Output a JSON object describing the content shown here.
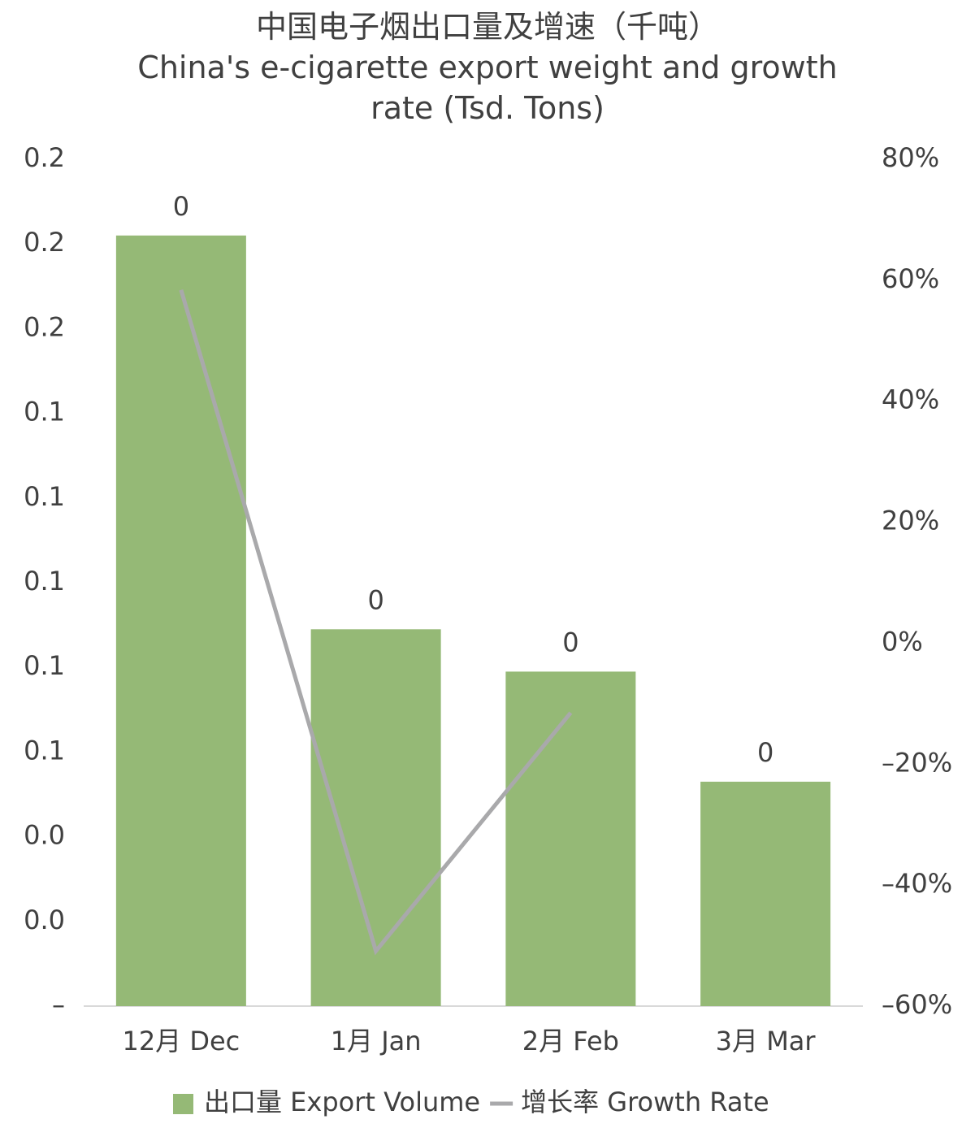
{
  "chart_data": {
    "type": "bar_line",
    "title": "中国电子烟出口量及增速（千吨）",
    "subtitle": "China's e-cigarette export weight and growth rate (Tsd. Tons)",
    "categories": [
      "12月 Dec",
      "1月 Jan",
      "2月 Feb",
      "3月 Mar"
    ],
    "series": [
      {
        "name": "出口量 Export Volume",
        "type": "bar",
        "color": "#95b976",
        "values": [
          0.182,
          0.089,
          0.079,
          0.053
        ],
        "value_labels": [
          "0",
          "0",
          "0",
          "0"
        ]
      },
      {
        "name": "增长率 Growth Rate",
        "type": "line",
        "axis": "y2",
        "color": "#a9a9ab",
        "values": [
          58.4,
          -50.9,
          -11.5,
          null
        ]
      }
    ],
    "ylim": [
      0,
      0.2
    ],
    "yticks": [
      {
        "value": 0,
        "label": "–"
      },
      {
        "value": 0.02,
        "label": "0.0"
      },
      {
        "value": 0.04,
        "label": "0.0"
      },
      {
        "value": 0.06,
        "label": "0.1"
      },
      {
        "value": 0.08,
        "label": "0.1"
      },
      {
        "value": 0.1,
        "label": "0.1"
      },
      {
        "value": 0.12,
        "label": "0.1"
      },
      {
        "value": 0.14,
        "label": "0.1"
      },
      {
        "value": 0.16,
        "label": "0.2"
      },
      {
        "value": 0.18,
        "label": "0.2"
      },
      {
        "value": 0.2,
        "label": "0.2"
      }
    ],
    "y2lim": [
      -60,
      80
    ],
    "y2ticks": [
      {
        "value": -60,
        "label": "–60%"
      },
      {
        "value": -40,
        "label": "–40%"
      },
      {
        "value": -20,
        "label": "–20%"
      },
      {
        "value": 0,
        "label": "0%"
      },
      {
        "value": 20,
        "label": "20%"
      },
      {
        "value": 40,
        "label": "40%"
      },
      {
        "value": 60,
        "label": "60%"
      },
      {
        "value": 80,
        "label": "80%"
      }
    ],
    "legend": "bottom"
  }
}
